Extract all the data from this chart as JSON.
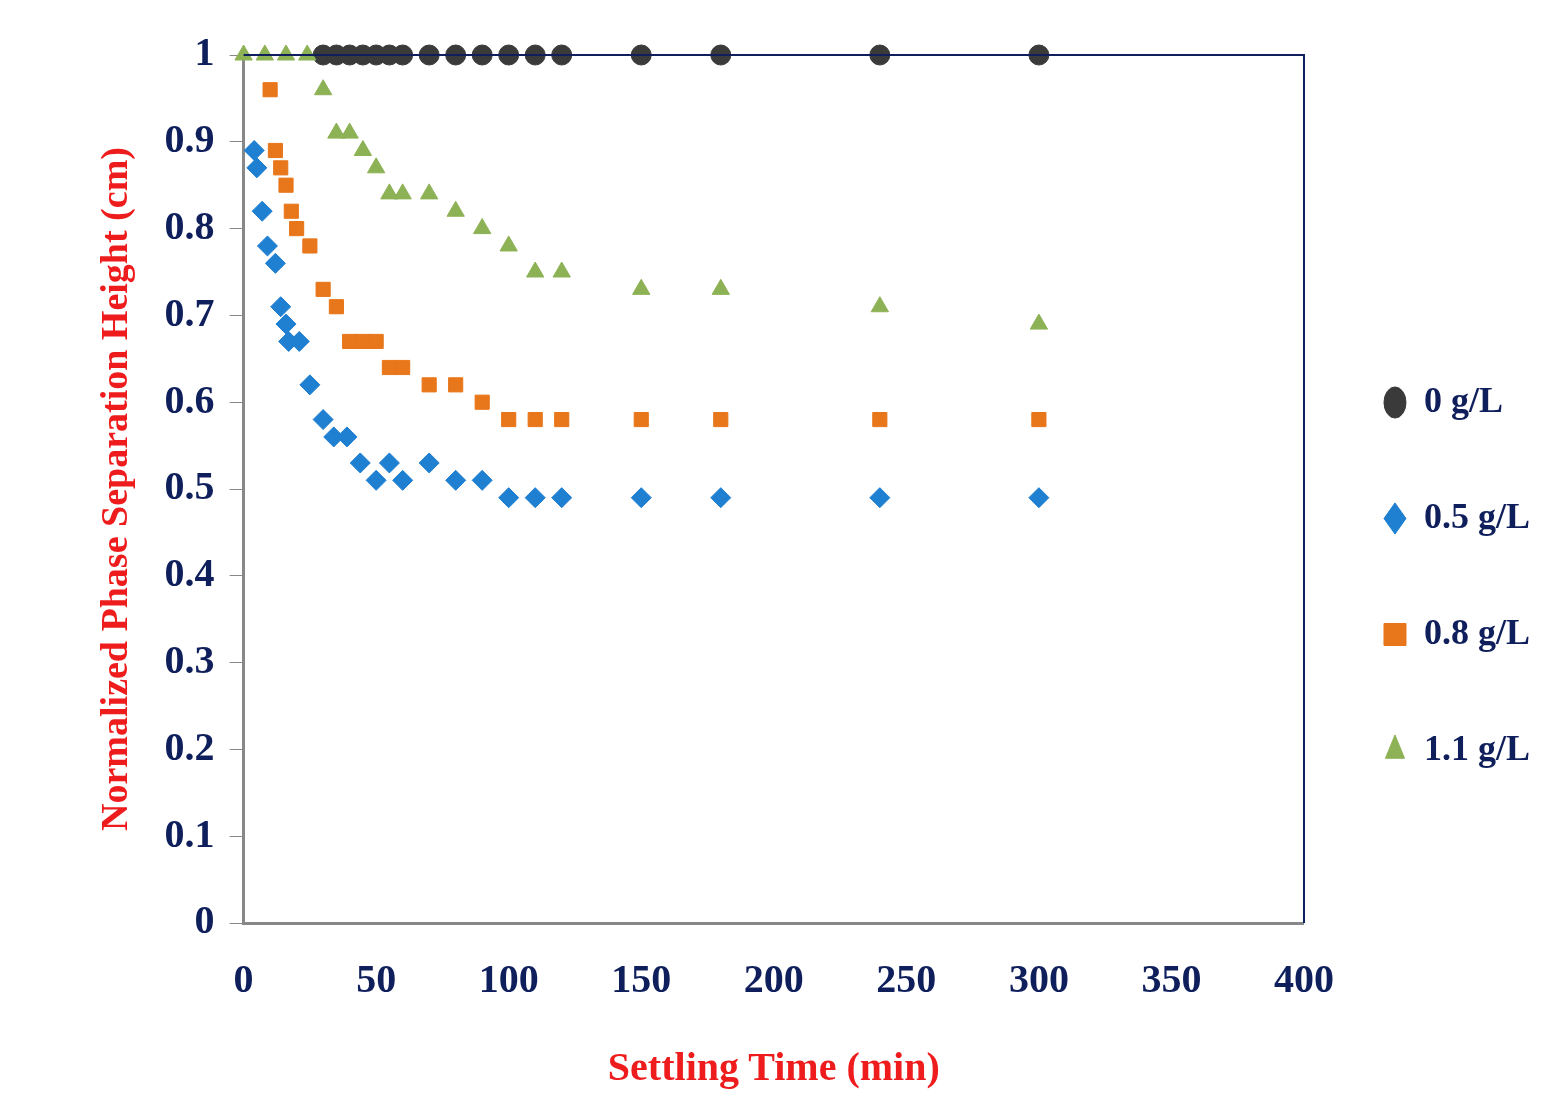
{
  "chart_data": {
    "type": "scatter",
    "xlabel": "Settling Time (min)",
    "ylabel": "Normalized Phase Separation Height (cm)",
    "xlim": [
      0,
      400
    ],
    "xticks": [
      0,
      50,
      100,
      150,
      200,
      250,
      300,
      350,
      400
    ],
    "ylim": [
      0,
      1
    ],
    "yticks": [
      0,
      0.1,
      0.2,
      0.3,
      0.4,
      0.5,
      0.6,
      0.7,
      0.8,
      0.9,
      1
    ],
    "grid": false,
    "legend": "right",
    "series": [
      {
        "name": "0 g/L",
        "color": "#3a3a3a",
        "marker": "circle",
        "x": [
          30,
          35,
          40,
          45,
          50,
          55,
          60,
          70,
          80,
          90,
          100,
          110,
          120,
          150,
          180,
          240,
          300
        ],
        "values": [
          1,
          1,
          1,
          1,
          1,
          1,
          1,
          1,
          1,
          1,
          1,
          1,
          1,
          1,
          1,
          1,
          1
        ]
      },
      {
        "name": "0.5 g/L",
        "color": "#1f7fd0",
        "marker": "diamond",
        "x": [
          4,
          5,
          7,
          9,
          12,
          14,
          16,
          17,
          21,
          25,
          30,
          34,
          39,
          44,
          50,
          55,
          60,
          70,
          80,
          90,
          100,
          110,
          120,
          150,
          180,
          240,
          300
        ],
        "values": [
          0.89,
          0.87,
          0.82,
          0.78,
          0.76,
          0.71,
          0.69,
          0.67,
          0.67,
          0.62,
          0.58,
          0.56,
          0.56,
          0.53,
          0.51,
          0.53,
          0.51,
          0.53,
          0.51,
          0.51,
          0.49,
          0.49,
          0.49,
          0.49,
          0.49,
          0.49,
          0.49
        ]
      },
      {
        "name": "0.8 g/L",
        "color": "#e8761a",
        "marker": "square",
        "x": [
          10,
          12,
          14,
          16,
          18,
          20,
          25,
          30,
          35,
          40,
          45,
          50,
          55,
          60,
          70,
          80,
          90,
          100,
          110,
          120,
          150,
          180,
          240,
          300
        ],
        "values": [
          0.96,
          0.89,
          0.87,
          0.85,
          0.82,
          0.8,
          0.78,
          0.73,
          0.71,
          0.67,
          0.67,
          0.67,
          0.64,
          0.64,
          0.62,
          0.62,
          0.6,
          0.58,
          0.58,
          0.58,
          0.58,
          0.58,
          0.58,
          0.58
        ]
      },
      {
        "name": "1.1 g/L",
        "color": "#8db255",
        "marker": "triangle",
        "x": [
          0,
          8,
          16,
          24,
          30,
          35,
          40,
          45,
          50,
          55,
          60,
          70,
          80,
          90,
          100,
          110,
          120,
          150,
          180,
          240,
          300
        ],
        "values": [
          1,
          1,
          1,
          1,
          0.96,
          0.91,
          0.91,
          0.89,
          0.87,
          0.84,
          0.84,
          0.84,
          0.82,
          0.8,
          0.78,
          0.75,
          0.75,
          0.73,
          0.73,
          0.71,
          0.69
        ]
      }
    ]
  }
}
